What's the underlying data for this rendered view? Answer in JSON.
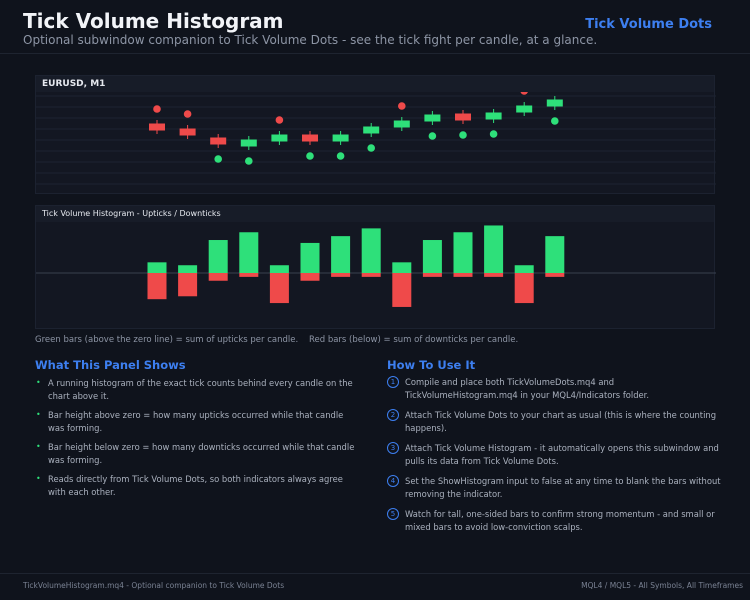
{
  "header": {
    "title": "Tick Volume Histogram",
    "subtitle": "Optional subwindow companion to Tick Volume Dots - see the tick fight per candle, at a glance.",
    "link": "Tick Volume Dots"
  },
  "colors": {
    "up": "#2ee07a",
    "down": "#ef4a4a",
    "accent": "#3d7ff0",
    "background": "#0f131c"
  },
  "price_panel": {
    "symbol_label": "EURUSD, M1"
  },
  "histogram_panel": {
    "label": "Tick Volume Histogram - Upticks / Downticks"
  },
  "caption": "Green bars (above the zero line) = sum of upticks per candle.    Red bars (below) = sum of downticks per candle.",
  "chart_data": [
    {
      "type": "candlestick",
      "candles": [
        {
          "dir": "down",
          "dot": "above"
        },
        {
          "dir": "down",
          "dot": "above"
        },
        {
          "dir": "down",
          "dot": "below"
        },
        {
          "dir": "up",
          "dot": "below"
        },
        {
          "dir": "up",
          "dot": "above"
        },
        {
          "dir": "down",
          "dot": "below"
        },
        {
          "dir": "up",
          "dot": "below"
        },
        {
          "dir": "up",
          "dot": "below"
        },
        {
          "dir": "up",
          "dot": "above"
        },
        {
          "dir": "up",
          "dot": "below"
        },
        {
          "dir": "down",
          "dot": "below"
        },
        {
          "dir": "up",
          "dot": "below"
        },
        {
          "dir": "up",
          "dot": "above"
        },
        {
          "dir": "up",
          "dot": "below"
        }
      ]
    },
    {
      "type": "bar",
      "series": [
        {
          "values": [
            11,
            8,
            34,
            42,
            8,
            31,
            38,
            46,
            11,
            34,
            42,
            49,
            8,
            38
          ]
        },
        {
          "values": [
            -27,
            -24,
            -8,
            -4,
            -31,
            -8,
            -4,
            -4,
            -35,
            -4,
            -4,
            -4,
            -31,
            -4
          ]
        }
      ]
    }
  ],
  "left_section": {
    "title": "What This Panel Shows",
    "items": [
      "A running histogram of the exact tick counts behind every candle on the chart above it.",
      "Bar height above zero = how many upticks occurred while that candle was forming.",
      "Bar height below zero = how many downticks occurred while that candle was forming.",
      "Reads directly from Tick Volume Dots, so both indicators always agree with each other."
    ]
  },
  "right_section": {
    "title": "How To Use It",
    "steps": [
      {
        "num": "1",
        "text": "Compile and place both TickVolumeDots.mq4 and TickVolumeHistogram.mq4 in your MQL4/Indicators folder."
      },
      {
        "num": "2",
        "text": "Attach Tick Volume Dots to your chart as usual (this is where the counting happens)."
      },
      {
        "num": "3",
        "text": "Attach Tick Volume Histogram - it automatically opens this subwindow and pulls its data from Tick Volume Dots."
      },
      {
        "num": "4",
        "text": "Set the ShowHistogram input to false at any time to blank the bars without removing the indicator."
      },
      {
        "num": "5",
        "text": "Watch for tall, one-sided bars to confirm strong momentum - and small or mixed bars to avoid low-conviction scalps."
      }
    ]
  },
  "footer": {
    "left": "TickVolumeHistogram.mq4  -  Optional companion to Tick Volume Dots",
    "right": "MQL4 / MQL5  -  All Symbols, All Timeframes"
  }
}
